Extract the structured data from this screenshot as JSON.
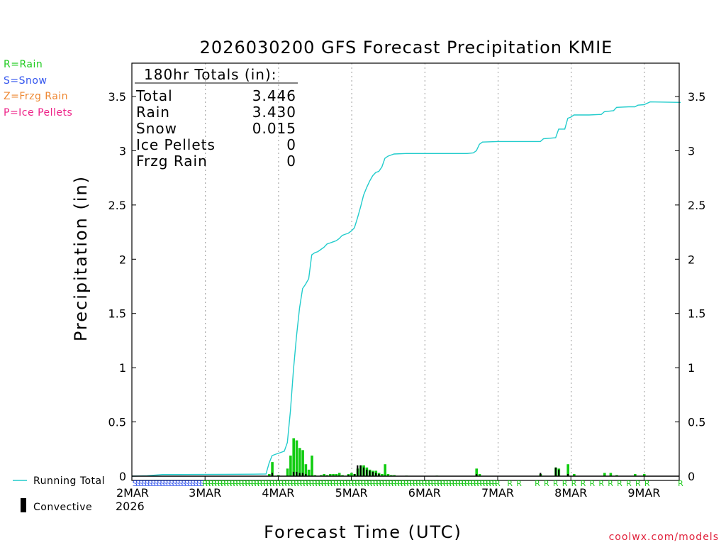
{
  "chart_data": {
    "type": "bar",
    "title": "2026030200 GFS Forecast Precipitation KMIE",
    "xlabel": "Forecast Time (UTC)",
    "ylabel": "Precipitation (in)",
    "ylim": [
      0,
      3.8
    ],
    "xlim_hours": [
      0,
      180
    ],
    "yticks": [
      "0",
      "0.5",
      "1",
      "1.5",
      "2",
      "2.5",
      "3",
      "3.5"
    ],
    "ytick_values": [
      0,
      0.5,
      1,
      1.5,
      2,
      2.5,
      3,
      3.5
    ],
    "xticks": [
      {
        "label": "2MAR",
        "hour": 0
      },
      {
        "label": "3MAR",
        "hour": 24
      },
      {
        "label": "4MAR",
        "hour": 48
      },
      {
        "label": "5MAR",
        "hour": 72
      },
      {
        "label": "6MAR",
        "hour": 96
      },
      {
        "label": "7MAR",
        "hour": 120
      },
      {
        "label": "8MAR",
        "hour": 144
      },
      {
        "label": "9MAR",
        "hour": 168
      }
    ],
    "year_label": "2026",
    "precip_type_legend": [
      {
        "label": "R=Rain",
        "color": "#22cc22"
      },
      {
        "label": "S=Snow",
        "color": "#3355ee"
      },
      {
        "label": "Z=Frzg Rain",
        "color": "#ee8833"
      },
      {
        "label": "P=Ice Pellets",
        "color": "#ee2288"
      }
    ],
    "series_legend": [
      {
        "label": "Running Total",
        "color": "#22cccc"
      },
      {
        "label": "Convective",
        "color": "#000000"
      }
    ],
    "totals_box": {
      "header": "180hr Totals (in):",
      "rows": [
        {
          "label": "Total",
          "value": "3.446"
        },
        {
          "label": "Rain",
          "value": "3.430"
        },
        {
          "label": "Snow",
          "value": "0.015"
        },
        {
          "label": "Ice Pellets",
          "value": "0"
        },
        {
          "label": "Frzg Rain",
          "value": "0"
        }
      ]
    },
    "running_total": {
      "color": "#22cccc",
      "points": [
        [
          0,
          0
        ],
        [
          5,
          0.003
        ],
        [
          10,
          0.015
        ],
        [
          20,
          0.016
        ],
        [
          30,
          0.017
        ],
        [
          40,
          0.018
        ],
        [
          44,
          0.02
        ],
        [
          45,
          0.12
        ],
        [
          46,
          0.19
        ],
        [
          47,
          0.2
        ],
        [
          48,
          0.21
        ],
        [
          49,
          0.22
        ],
        [
          50,
          0.23
        ],
        [
          51,
          0.31
        ],
        [
          52,
          0.6
        ],
        [
          53,
          0.98
        ],
        [
          54,
          1.29
        ],
        [
          55,
          1.55
        ],
        [
          56,
          1.73
        ],
        [
          57,
          1.77
        ],
        [
          58,
          1.82
        ],
        [
          59,
          2.04
        ],
        [
          60,
          2.06
        ],
        [
          61,
          2.07
        ],
        [
          62,
          2.09
        ],
        [
          63,
          2.11
        ],
        [
          64,
          2.14
        ],
        [
          65,
          2.15
        ],
        [
          66,
          2.16
        ],
        [
          67,
          2.17
        ],
        [
          68,
          2.19
        ],
        [
          69,
          2.22
        ],
        [
          70,
          2.23
        ],
        [
          71,
          2.24
        ],
        [
          72,
          2.26
        ],
        [
          73,
          2.29
        ],
        [
          74,
          2.38
        ],
        [
          75,
          2.48
        ],
        [
          76,
          2.59
        ],
        [
          77,
          2.66
        ],
        [
          78,
          2.72
        ],
        [
          79,
          2.77
        ],
        [
          80,
          2.8
        ],
        [
          81,
          2.81
        ],
        [
          82,
          2.85
        ],
        [
          83,
          2.93
        ],
        [
          84,
          2.95
        ],
        [
          85,
          2.96
        ],
        [
          86,
          2.97
        ],
        [
          90,
          2.975
        ],
        [
          100,
          2.975
        ],
        [
          110,
          2.975
        ],
        [
          112,
          2.98
        ],
        [
          113,
          3.0
        ],
        [
          114,
          3.06
        ],
        [
          115,
          3.08
        ],
        [
          120,
          3.085
        ],
        [
          130,
          3.085
        ],
        [
          134,
          3.085
        ],
        [
          135,
          3.11
        ],
        [
          139,
          3.12
        ],
        [
          140,
          3.2
        ],
        [
          142,
          3.2
        ],
        [
          143,
          3.3
        ],
        [
          144,
          3.31
        ],
        [
          145,
          3.33
        ],
        [
          150,
          3.33
        ],
        [
          154,
          3.335
        ],
        [
          155,
          3.36
        ],
        [
          158,
          3.37
        ],
        [
          159,
          3.4
        ],
        [
          163,
          3.405
        ],
        [
          165,
          3.405
        ],
        [
          166,
          3.42
        ],
        [
          168,
          3.425
        ],
        [
          170,
          3.45
        ],
        [
          180,
          3.446
        ]
      ]
    },
    "bars": {
      "rain_color": "#11cc11",
      "convective_color": "#000000",
      "rain": [
        [
          45,
          0.02
        ],
        [
          46,
          0.13
        ],
        [
          48,
          0.01
        ],
        [
          51,
          0.07
        ],
        [
          52,
          0.19
        ],
        [
          53,
          0.35
        ],
        [
          54,
          0.33
        ],
        [
          55,
          0.26
        ],
        [
          56,
          0.24
        ],
        [
          57,
          0.11
        ],
        [
          58,
          0.06
        ],
        [
          59,
          0.19
        ],
        [
          60,
          0.01
        ],
        [
          62,
          0.01
        ],
        [
          63,
          0.02
        ],
        [
          64,
          0.01
        ],
        [
          65,
          0.02
        ],
        [
          66,
          0.02
        ],
        [
          67,
          0.02
        ],
        [
          68,
          0.03
        ],
        [
          69,
          0.01
        ],
        [
          71,
          0.02
        ],
        [
          72,
          0.03
        ],
        [
          73,
          0.02
        ],
        [
          74,
          0.07
        ],
        [
          75,
          0.1
        ],
        [
          76,
          0.1
        ],
        [
          77,
          0.08
        ],
        [
          78,
          0.06
        ],
        [
          79,
          0.05
        ],
        [
          80,
          0.05
        ],
        [
          81,
          0.03
        ],
        [
          82,
          0.02
        ],
        [
          83,
          0.11
        ],
        [
          84,
          0.02
        ],
        [
          85,
          0.01
        ],
        [
          86,
          0.01
        ],
        [
          90,
          0.005
        ],
        [
          100,
          0.005
        ],
        [
          113,
          0.07
        ],
        [
          114,
          0.02
        ],
        [
          134,
          0.02
        ],
        [
          139,
          0.08
        ],
        [
          140,
          0.07
        ],
        [
          143,
          0.11
        ],
        [
          145,
          0.02
        ],
        [
          155,
          0.03
        ],
        [
          157,
          0.03
        ],
        [
          159,
          0.01
        ],
        [
          165,
          0.02
        ],
        [
          168,
          0.02
        ]
      ],
      "convective": [
        [
          46,
          0.03
        ],
        [
          53,
          0.04
        ],
        [
          54,
          0.04
        ],
        [
          55,
          0.03
        ],
        [
          56,
          0.03
        ],
        [
          57,
          0.02
        ],
        [
          71,
          0.01
        ],
        [
          73,
          0.02
        ],
        [
          74,
          0.1
        ],
        [
          75,
          0.1
        ],
        [
          76,
          0.08
        ],
        [
          77,
          0.06
        ],
        [
          78,
          0.05
        ],
        [
          79,
          0.04
        ],
        [
          80,
          0.03
        ],
        [
          81,
          0.02
        ],
        [
          113,
          0.02
        ],
        [
          134,
          0.03
        ],
        [
          139,
          0.08
        ],
        [
          140,
          0.06
        ],
        [
          143,
          0.02
        ]
      ]
    },
    "ptype_strip": {
      "snow_hours": [
        1,
        2,
        3,
        4,
        5,
        6,
        7,
        8,
        9,
        10,
        11,
        12,
        13,
        14,
        15,
        16,
        17,
        18,
        19,
        20,
        21,
        22,
        23
      ],
      "rain_hours": [
        24,
        25,
        26,
        27,
        28,
        29,
        30,
        31,
        32,
        33,
        34,
        35,
        36,
        37,
        38,
        39,
        40,
        41,
        42,
        43,
        44,
        45,
        46,
        47,
        48,
        49,
        50,
        51,
        52,
        53,
        54,
        55,
        56,
        57,
        58,
        59,
        60,
        61,
        62,
        63,
        64,
        65,
        66,
        67,
        68,
        69,
        70,
        71,
        72,
        73,
        74,
        75,
        76,
        77,
        78,
        79,
        80,
        81,
        82,
        83,
        84,
        85,
        86,
        87,
        88,
        89,
        90,
        91,
        92,
        93,
        94,
        95,
        96,
        97,
        98,
        99,
        100,
        101,
        102,
        103,
        104,
        105,
        106,
        107,
        108,
        109,
        110,
        111,
        112,
        113,
        114,
        115,
        116,
        117,
        118,
        119,
        120,
        124,
        127,
        133,
        136,
        139,
        142,
        145,
        148,
        151,
        154,
        157,
        160,
        163,
        166,
        169,
        180
      ]
    }
  },
  "credit": "coolwx.com/models"
}
